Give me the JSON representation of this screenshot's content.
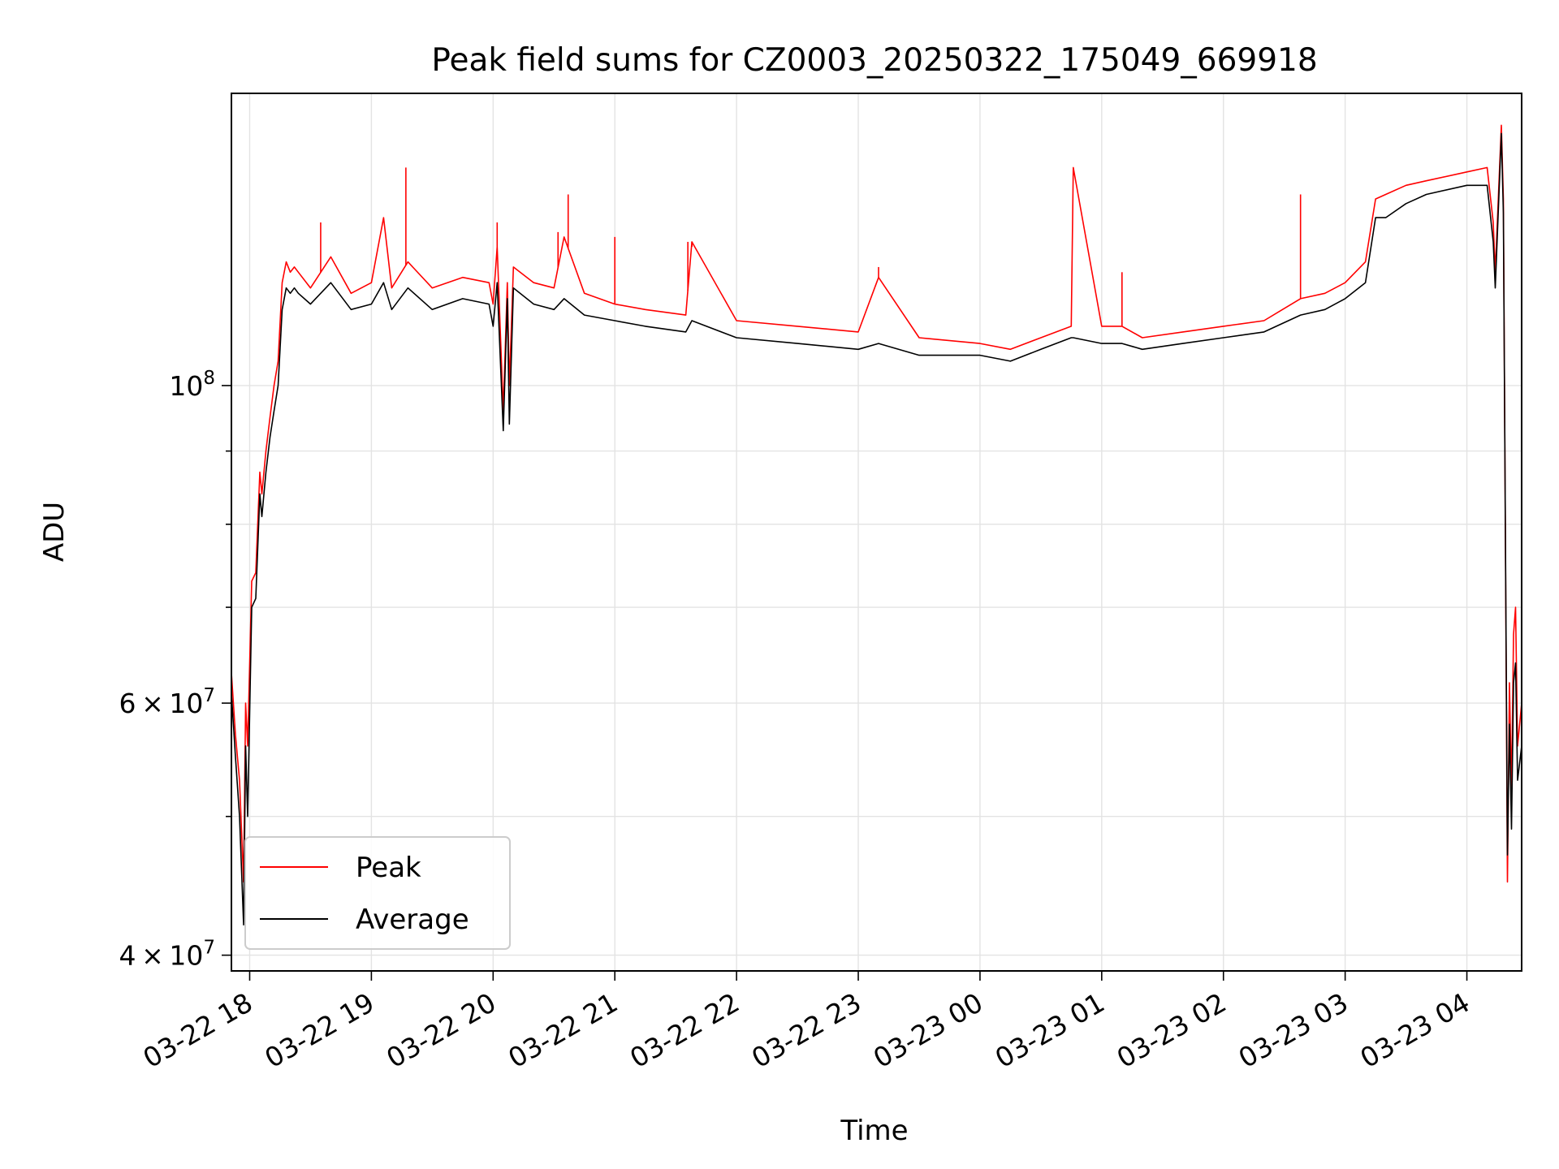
{
  "chart_data": {
    "type": "line",
    "title": "Peak field sums for CZ0003_20250322_175049_669918",
    "xlabel": "Time",
    "ylabel": "ADU",
    "yscale": "log",
    "x_axis_type": "datetime",
    "xlim": [
      "2025-03-22 17:51",
      "2025-03-23 04:27"
    ],
    "ylim": [
      39000000,
      160000000
    ],
    "grid": true,
    "legend": "lower-left",
    "x_ticks": [
      {
        "x": "2025-03-22 18:00",
        "label": "03-22 18"
      },
      {
        "x": "2025-03-22 19:00",
        "label": "03-22 19"
      },
      {
        "x": "2025-03-22 20:00",
        "label": "03-22 20"
      },
      {
        "x": "2025-03-22 21:00",
        "label": "03-22 21"
      },
      {
        "x": "2025-03-22 22:00",
        "label": "03-22 22"
      },
      {
        "x": "2025-03-22 23:00",
        "label": "03-22 23"
      },
      {
        "x": "2025-03-23 00:00",
        "label": "03-23 00"
      },
      {
        "x": "2025-03-23 01:00",
        "label": "03-23 01"
      },
      {
        "x": "2025-03-23 02:00",
        "label": "03-23 02"
      },
      {
        "x": "2025-03-23 03:00",
        "label": "03-23 03"
      },
      {
        "x": "2025-03-23 04:00",
        "label": "03-23 04"
      }
    ],
    "y_ticks": [
      {
        "value": 40000000,
        "mantissa": "4",
        "exponent": "7"
      },
      {
        "value": 60000000,
        "mantissa": "6",
        "exponent": "7"
      },
      {
        "value": 100000000,
        "mantissa": "",
        "exponent": "8"
      }
    ],
    "y_minor_ticks": [
      50000000,
      70000000,
      80000000,
      90000000
    ],
    "series": [
      {
        "name": "Peak",
        "color": "#ff0000",
        "x": [
          "2025-03-22 17:51",
          "2025-03-22 17:53",
          "2025-03-22 17:55",
          "2025-03-22 17:57",
          "2025-03-22 17:58",
          "2025-03-22 17:59",
          "2025-03-22 18:01",
          "2025-03-22 18:03",
          "2025-03-22 18:05",
          "2025-03-22 18:06",
          "2025-03-22 18:08",
          "2025-03-22 18:10",
          "2025-03-22 18:12",
          "2025-03-22 18:14",
          "2025-03-22 18:16",
          "2025-03-22 18:18",
          "2025-03-22 18:20",
          "2025-03-22 18:22",
          "2025-03-22 18:24",
          "2025-03-22 18:30",
          "2025-03-22 18:40",
          "2025-03-22 18:50",
          "2025-03-22 19:00",
          "2025-03-22 19:06",
          "2025-03-22 19:10",
          "2025-03-22 19:18",
          "2025-03-22 19:30",
          "2025-03-22 19:45",
          "2025-03-22 19:58",
          "2025-03-22 20:00",
          "2025-03-22 20:02",
          "2025-03-22 20:05",
          "2025-03-22 20:07",
          "2025-03-22 20:08",
          "2025-03-22 20:10",
          "2025-03-22 20:20",
          "2025-03-22 20:30",
          "2025-03-22 20:35",
          "2025-03-22 20:45",
          "2025-03-22 21:00",
          "2025-03-22 21:15",
          "2025-03-22 21:35",
          "2025-03-22 21:38",
          "2025-03-22 22:00",
          "2025-03-22 22:30",
          "2025-03-22 23:00",
          "2025-03-22 23:10",
          "2025-03-22 23:30",
          "2025-03-23 00:00",
          "2025-03-23 00:15",
          "2025-03-23 00:30",
          "2025-03-23 00:45",
          "2025-03-23 00:46",
          "2025-03-23 01:00",
          "2025-03-23 01:10",
          "2025-03-23 01:20",
          "2025-03-23 01:40",
          "2025-03-23 02:00",
          "2025-03-23 02:20",
          "2025-03-23 02:38",
          "2025-03-23 02:50",
          "2025-03-23 03:00",
          "2025-03-23 03:10",
          "2025-03-23 03:15",
          "2025-03-23 03:20",
          "2025-03-23 03:30",
          "2025-03-23 03:40",
          "2025-03-23 04:00",
          "2025-03-23 04:10",
          "2025-03-23 04:13",
          "2025-03-23 04:14",
          "2025-03-23 04:17",
          "2025-03-23 04:18",
          "2025-03-23 04:20",
          "2025-03-23 04:21",
          "2025-03-23 04:22",
          "2025-03-23 04:23",
          "2025-03-23 04:24",
          "2025-03-23 04:25",
          "2025-03-23 04:27"
        ],
        "y": [
          63000000,
          57000000,
          53000000,
          45000000,
          60000000,
          56000000,
          73000000,
          74000000,
          87000000,
          84000000,
          90000000,
          95000000,
          100000000,
          104000000,
          118000000,
          122000000,
          120000000,
          121000000,
          120000000,
          117000000,
          123000000,
          116000000,
          118000000,
          131000000,
          117000000,
          122000000,
          117000000,
          119000000,
          118000000,
          114000000,
          125000000,
          96000000,
          118000000,
          100000000,
          121000000,
          118000000,
          117000000,
          127000000,
          116000000,
          114000000,
          113000000,
          112000000,
          126000000,
          111000000,
          110000000,
          109000000,
          119000000,
          108000000,
          107000000,
          106000000,
          108000000,
          110000000,
          142000000,
          110000000,
          110000000,
          108000000,
          109000000,
          110000000,
          111000000,
          115000000,
          116000000,
          118000000,
          122000000,
          135000000,
          136000000,
          138000000,
          139000000,
          141000000,
          142000000,
          130000000,
          120000000,
          152000000,
          135000000,
          45000000,
          62000000,
          52000000,
          67000000,
          70000000,
          56000000,
          60000000
        ],
        "spikes": [
          {
            "x": "2025-03-22 18:35",
            "y": 130000000
          },
          {
            "x": "2025-03-22 19:06",
            "y": 131000000
          },
          {
            "x": "2025-03-22 19:17",
            "y": 142000000
          },
          {
            "x": "2025-03-22 20:02",
            "y": 130000000
          },
          {
            "x": "2025-03-22 20:32",
            "y": 128000000
          },
          {
            "x": "2025-03-22 20:37",
            "y": 136000000
          },
          {
            "x": "2025-03-22 21:00",
            "y": 127000000
          },
          {
            "x": "2025-03-22 21:36",
            "y": 126000000
          },
          {
            "x": "2025-03-22 21:38",
            "y": 125000000
          },
          {
            "x": "2025-03-22 23:10",
            "y": 121000000
          },
          {
            "x": "2025-03-23 00:46",
            "y": 142000000
          },
          {
            "x": "2025-03-23 01:10",
            "y": 120000000
          },
          {
            "x": "2025-03-23 02:38",
            "y": 136000000
          }
        ]
      },
      {
        "name": "Average",
        "color": "#000000",
        "x": [
          "2025-03-22 17:51",
          "2025-03-22 17:53",
          "2025-03-22 17:55",
          "2025-03-22 17:57",
          "2025-03-22 17:58",
          "2025-03-22 17:59",
          "2025-03-22 18:01",
          "2025-03-22 18:03",
          "2025-03-22 18:05",
          "2025-03-22 18:06",
          "2025-03-22 18:08",
          "2025-03-22 18:10",
          "2025-03-22 18:12",
          "2025-03-22 18:14",
          "2025-03-22 18:16",
          "2025-03-22 18:18",
          "2025-03-22 18:20",
          "2025-03-22 18:22",
          "2025-03-22 18:24",
          "2025-03-22 18:30",
          "2025-03-22 18:40",
          "2025-03-22 18:50",
          "2025-03-22 19:00",
          "2025-03-22 19:06",
          "2025-03-22 19:10",
          "2025-03-22 19:18",
          "2025-03-22 19:30",
          "2025-03-22 19:45",
          "2025-03-22 19:58",
          "2025-03-22 20:00",
          "2025-03-22 20:02",
          "2025-03-22 20:05",
          "2025-03-22 20:07",
          "2025-03-22 20:08",
          "2025-03-22 20:10",
          "2025-03-22 20:20",
          "2025-03-22 20:30",
          "2025-03-22 20:35",
          "2025-03-22 20:45",
          "2025-03-22 21:00",
          "2025-03-22 21:15",
          "2025-03-22 21:35",
          "2025-03-22 21:38",
          "2025-03-22 22:00",
          "2025-03-22 22:30",
          "2025-03-22 23:00",
          "2025-03-22 23:10",
          "2025-03-22 23:30",
          "2025-03-23 00:00",
          "2025-03-23 00:15",
          "2025-03-23 00:30",
          "2025-03-23 00:45",
          "2025-03-23 00:46",
          "2025-03-23 01:00",
          "2025-03-23 01:10",
          "2025-03-23 01:20",
          "2025-03-23 01:40",
          "2025-03-23 02:00",
          "2025-03-23 02:20",
          "2025-03-23 02:38",
          "2025-03-23 02:50",
          "2025-03-23 03:00",
          "2025-03-23 03:10",
          "2025-03-23 03:15",
          "2025-03-23 03:20",
          "2025-03-23 03:30",
          "2025-03-23 03:40",
          "2025-03-23 04:00",
          "2025-03-23 04:10",
          "2025-03-23 04:13",
          "2025-03-23 04:14",
          "2025-03-23 04:17",
          "2025-03-23 04:18",
          "2025-03-23 04:20",
          "2025-03-23 04:21",
          "2025-03-23 04:22",
          "2025-03-23 04:23",
          "2025-03-23 04:24",
          "2025-03-23 04:25",
          "2025-03-23 04:27"
        ],
        "y": [
          61000000,
          55000000,
          50000000,
          42000000,
          56000000,
          50000000,
          70000000,
          71000000,
          84000000,
          81000000,
          87000000,
          92000000,
          96000000,
          100000000,
          113000000,
          117000000,
          116000000,
          117000000,
          116000000,
          114000000,
          118000000,
          113000000,
          114000000,
          118000000,
          113000000,
          117000000,
          113000000,
          115000000,
          114000000,
          110000000,
          118000000,
          93000000,
          115000000,
          94000000,
          117000000,
          114000000,
          113000000,
          115000000,
          112000000,
          111000000,
          110000000,
          109000000,
          111000000,
          108000000,
          107000000,
          106000000,
          107000000,
          105000000,
          105000000,
          104000000,
          106000000,
          108000000,
          108000000,
          107000000,
          107000000,
          106000000,
          107000000,
          108000000,
          109000000,
          112000000,
          113000000,
          115000000,
          118000000,
          131000000,
          131000000,
          134000000,
          136000000,
          138000000,
          138000000,
          126000000,
          117000000,
          150000000,
          132000000,
          47000000,
          58000000,
          49000000,
          62000000,
          64000000,
          53000000,
          56000000
        ]
      }
    ]
  }
}
